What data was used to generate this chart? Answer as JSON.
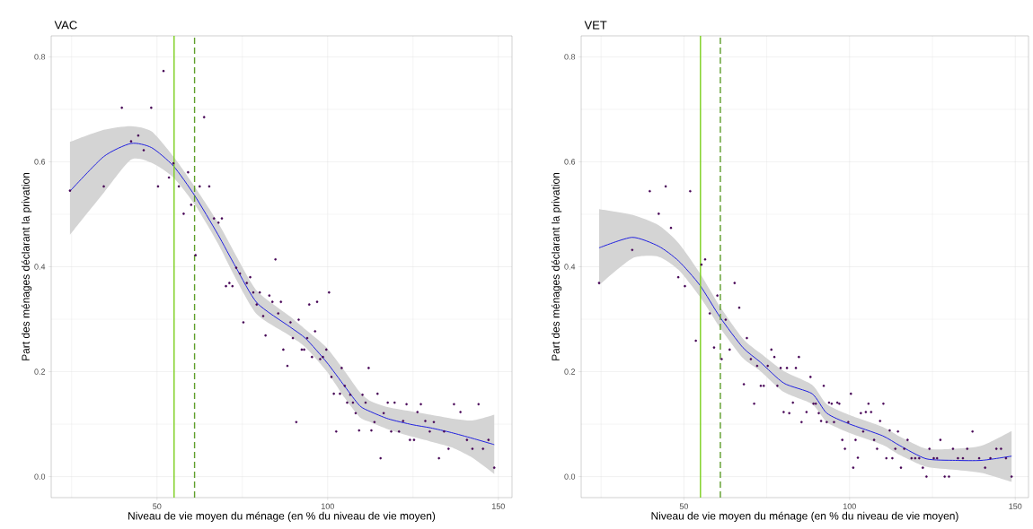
{
  "chart_data": [
    {
      "type": "scatter",
      "title": "VAC",
      "xlabel": "Niveau de vie moyen du ménage (en % du niveau de vie moyen)",
      "ylabel": "Part des ménages déclarant la privation",
      "xlim": [
        19,
        154
      ],
      "ylim": [
        -0.04,
        0.84
      ],
      "xticks": [
        {
          "value": 25,
          "label": null
        },
        50,
        {
          "value": 75,
          "label": null
        },
        100,
        {
          "value": 125,
          "label": null
        },
        150
      ],
      "yticks": [
        {
          "value": 0,
          "label": "0.0"
        },
        {
          "value": 0.1,
          "label": null
        },
        0.2,
        {
          "value": 0.3,
          "label": null
        },
        0.4,
        {
          "value": 0.5,
          "label": null
        },
        0.6,
        {
          "value": 0.7,
          "label": null
        },
        0.8
      ],
      "grid": true,
      "series": [
        {
          "color": "#440154",
          "marker": "circle",
          "x": [
            24.5,
            34.4,
            39.7,
            42.4,
            44.5,
            46.1,
            48.3,
            50.3,
            51.9,
            53.5,
            54.8,
            56.4,
            57.8,
            59.1,
            60.0,
            61.3,
            62.5,
            63.8,
            65.3,
            66.7,
            68.0,
            69.0,
            70.2,
            71.2,
            72.1,
            73.2,
            74.3,
            75.3,
            76.3,
            77.3,
            78.2,
            79.2,
            80.1,
            81.1,
            81.8,
            82.9,
            83.8,
            84.7,
            85.5,
            86.3,
            87.0,
            88.2,
            89.1,
            89.8,
            90.8,
            91.5,
            92.4,
            93.1,
            94.0,
            94.6,
            95.4,
            96.3,
            96.9,
            97.8,
            98.6,
            99.6,
            100.4,
            101.1,
            101.8,
            102.5,
            103.6,
            104.1,
            105.0,
            105.7,
            106.6,
            107.4,
            108.2,
            109.2,
            110.2,
            111.1,
            112.0,
            112.8,
            113.7,
            114.6,
            115.5,
            116.4,
            117.6,
            118.6,
            119.6,
            120.9,
            122.1,
            123.1,
            124.1,
            125.3,
            126.3,
            127.3,
            128.6,
            129.9,
            131.1,
            132.6,
            134.1,
            135.4,
            137.0,
            138.9,
            140.8,
            142.4,
            144.2,
            145.5,
            147.1,
            148.8
          ],
          "values": [
            0.545,
            0.553,
            0.703,
            0.639,
            0.65,
            0.622,
            0.703,
            0.553,
            0.773,
            0.57,
            0.597,
            0.553,
            0.501,
            0.58,
            0.518,
            0.422,
            0.553,
            0.685,
            0.553,
            0.492,
            0.484,
            0.492,
            0.363,
            0.369,
            0.363,
            0.398,
            0.387,
            0.294,
            0.369,
            0.38,
            0.351,
            0.328,
            0.351,
            0.306,
            0.269,
            0.345,
            0.333,
            0.414,
            0.311,
            0.333,
            0.242,
            0.211,
            0.294,
            0.264,
            0.104,
            0.299,
            0.242,
            0.242,
            0.264,
            0.328,
            0.228,
            0.277,
            0.333,
            0.224,
            0.228,
            0.242,
            0.351,
            0.19,
            0.158,
            0.086,
            0.158,
            0.207,
            0.173,
            0.141,
            0.156,
            0.141,
            0.121,
            0.088,
            0.156,
            0.141,
            0.207,
            0.088,
            0.104,
            0.158,
            0.035,
            0.121,
            0.141,
            0.086,
            0.141,
            0.086,
            0.106,
            0.138,
            0.07,
            0.07,
            0.123,
            0.138,
            0.106,
            0.086,
            0.104,
            0.035,
            0.086,
            0.053,
            0.138,
            0.123,
            0.07,
            0.053,
            0.138,
            0.053,
            0.07,
            0.017
          ]
        },
        {
          "type": "line",
          "color": "#2020e0",
          "marker": "none",
          "x": [
            24.5,
            34.4,
            42.4,
            48.4,
            54.8,
            61.0,
            67.8,
            73.1,
            79.3,
            88.8,
            93.6,
            99.7,
            105.0,
            109.4,
            112.5,
            117.8,
            124.8,
            130.1,
            136.2,
            142.4,
            148.8
          ],
          "values": [
            0.544,
            0.61,
            0.635,
            0.627,
            0.592,
            0.536,
            0.462,
            0.399,
            0.331,
            0.286,
            0.263,
            0.218,
            0.172,
            0.135,
            0.124,
            0.11,
            0.099,
            0.093,
            0.084,
            0.073,
            0.061
          ],
          "upper": [
            0.638,
            0.661,
            0.668,
            0.658,
            0.61,
            0.553,
            0.485,
            0.422,
            0.354,
            0.306,
            0.28,
            0.246,
            0.201,
            0.161,
            0.144,
            0.132,
            0.124,
            0.118,
            0.111,
            0.107,
            0.118
          ],
          "lower": [
            0.461,
            0.541,
            0.604,
            0.598,
            0.57,
            0.519,
            0.445,
            0.377,
            0.309,
            0.269,
            0.246,
            0.201,
            0.15,
            0.113,
            0.104,
            0.09,
            0.076,
            0.067,
            0.056,
            0.036,
            0.005
          ]
        }
      ],
      "ref_lines": [
        {
          "axis": "x",
          "value": 55,
          "color": "#7ccf1e",
          "line_style": "solid"
        },
        {
          "axis": "x",
          "value": 61,
          "color": "#5e9e2a",
          "line_style": "dashed"
        }
      ]
    },
    {
      "type": "scatter",
      "title": "VET",
      "xlabel": "Niveau de vie moyen du ménage (en % du niveau de vie moyen)",
      "ylabel": "Part des ménages déclarant la privation",
      "xlim": [
        19,
        154
      ],
      "ylim": [
        -0.04,
        0.84
      ],
      "xticks": [
        {
          "value": 25,
          "label": null
        },
        50,
        {
          "value": 75,
          "label": null
        },
        100,
        {
          "value": 125,
          "label": null
        },
        150
      ],
      "yticks": [
        {
          "value": 0,
          "label": "0.0"
        },
        {
          "value": 0.1,
          "label": null
        },
        0.2,
        {
          "value": 0.3,
          "label": null
        },
        0.4,
        {
          "value": 0.5,
          "label": null
        },
        0.6,
        {
          "value": 0.7,
          "label": null
        },
        0.8
      ],
      "grid": true,
      "series": [
        {
          "color": "#440154",
          "marker": "circle",
          "x": [
            24.4,
            34.4,
            39.7,
            42.4,
            44.5,
            46.1,
            48.3,
            50.3,
            51.9,
            53.6,
            55.3,
            56.4,
            57.8,
            59.1,
            60.1,
            61.4,
            62.6,
            63.8,
            65.3,
            66.7,
            68.1,
            69.0,
            70.2,
            71.2,
            72.1,
            73.2,
            74.1,
            75.3,
            76.4,
            77.3,
            78.2,
            79.2,
            80.1,
            81.1,
            81.8,
            82.9,
            83.8,
            84.7,
            85.5,
            87.0,
            88.2,
            89.1,
            89.8,
            90.7,
            91.4,
            92.2,
            93.1,
            93.8,
            94.6,
            95.3,
            96.3,
            96.9,
            97.8,
            98.6,
            99.6,
            100.4,
            101.1,
            101.8,
            102.5,
            103.4,
            104.1,
            104.9,
            105.7,
            106.5,
            107.4,
            108.3,
            109.2,
            110.2,
            111.1,
            112.1,
            112.9,
            113.8,
            114.6,
            115.5,
            116.5,
            117.5,
            118.7,
            119.8,
            121.0,
            122.1,
            123.2,
            124.1,
            125.4,
            126.4,
            127.4,
            128.7,
            130.0,
            131.2,
            132.7,
            134.2,
            135.5,
            137.1,
            139.1,
            140.9,
            142.5,
            144.3,
            145.7,
            147.2,
            148.9
          ],
          "values": [
            0.369,
            0.432,
            0.544,
            0.501,
            0.553,
            0.474,
            0.38,
            0.363,
            0.544,
            0.259,
            0.404,
            0.414,
            0.311,
            0.246,
            0.345,
            0.224,
            0.299,
            0.242,
            0.369,
            0.322,
            0.176,
            0.264,
            0.224,
            0.139,
            0.211,
            0.173,
            0.173,
            0.211,
            0.242,
            0.228,
            0.173,
            0.207,
            0.123,
            0.207,
            0.121,
            0.141,
            0.207,
            0.228,
            0.104,
            0.123,
            0.19,
            0.139,
            0.139,
            0.121,
            0.106,
            0.173,
            0.104,
            0.141,
            0.139,
            0.104,
            0.141,
            0.139,
            0.07,
            0.053,
            0.104,
            0.158,
            0.017,
            0.07,
            0.036,
            0.121,
            0.086,
            0.123,
            0.139,
            0.123,
            0.07,
            0.053,
            0.106,
            0.139,
            0.035,
            0.088,
            0.035,
            0.053,
            0.086,
            0.017,
            0.053,
            0.07,
            0.035,
            0.035,
            0.035,
            0.017,
            0.0,
            0.053,
            0.035,
            0.035,
            0.07,
            0.0,
            0.0,
            0.053,
            0.035,
            0.035,
            0.053,
            0.086,
            0.035,
            0.017,
            0.035,
            0.053,
            0.053,
            0.035,
            0.0
          ]
        },
        {
          "type": "line",
          "color": "#2020e0",
          "marker": "none",
          "x": [
            24.4,
            34.4,
            42.4,
            48.4,
            54.8,
            61.0,
            67.8,
            73.1,
            80.2,
            88.7,
            93.1,
            99.7,
            109.9,
            115.2,
            123.1,
            131.9,
            139.9,
            148.9
          ],
          "values": [
            0.436,
            0.456,
            0.439,
            0.411,
            0.365,
            0.303,
            0.246,
            0.218,
            0.178,
            0.158,
            0.121,
            0.101,
            0.078,
            0.059,
            0.034,
            0.031,
            0.031,
            0.039
          ],
          "upper": [
            0.51,
            0.499,
            0.479,
            0.445,
            0.388,
            0.323,
            0.263,
            0.235,
            0.201,
            0.175,
            0.138,
            0.118,
            0.095,
            0.076,
            0.053,
            0.053,
            0.059,
            0.087
          ],
          "lower": [
            0.365,
            0.416,
            0.419,
            0.394,
            0.343,
            0.283,
            0.226,
            0.201,
            0.161,
            0.138,
            0.104,
            0.084,
            0.061,
            0.041,
            0.019,
            0.013,
            0.007,
            -0.01
          ]
        }
      ],
      "ref_lines": [
        {
          "axis": "x",
          "value": 55,
          "color": "#7ccf1e",
          "line_style": "solid"
        },
        {
          "axis": "x",
          "value": 61,
          "color": "#5e9e2a",
          "line_style": "dashed"
        }
      ]
    }
  ]
}
